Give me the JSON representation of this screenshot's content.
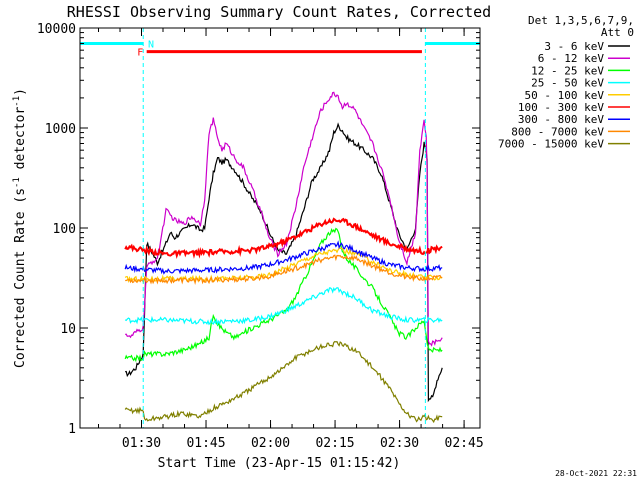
{
  "colors": {
    "background": "#ffffff",
    "axes": "#000000",
    "cyan": "#00ffff",
    "red": "#ff0000"
  },
  "chart_data": {
    "type": "line",
    "title": "RHESSI Observing Summary Count Rates, Corrected",
    "xlabel": "Start Time (23-Apr-15 01:15:42)",
    "ylabel_main": "Corrected Count Rate (s",
    "ylabel_sup": "-1",
    "ylabel_mid": " detector",
    "ylabel_end": ")",
    "y_scale": "log",
    "ylim": [
      1,
      10000
    ],
    "xlim_minutes": [
      0,
      93
    ],
    "x_tick_minutes": [
      14.3,
      29.3,
      44.3,
      59.3,
      74.3,
      89.3
    ],
    "x_tick_labels": [
      "01:30",
      "01:45",
      "02:00",
      "02:15",
      "02:30",
      "02:45"
    ],
    "y_ticks": [
      1,
      10,
      100,
      1000,
      10000
    ],
    "y_tick_labels": [
      "1",
      "10",
      "100",
      "1000",
      "10000"
    ],
    "legend_header": [
      "Det 1,3,5,6,7,9,",
      "Att 0"
    ],
    "legend_position": "right",
    "footer_timestamp": "28-Oct-2021 22:31",
    "data_window_minutes": [
      10.5,
      84.2
    ],
    "night_segments": [
      [
        0,
        14.7
      ],
      [
        80.3,
        93
      ]
    ],
    "night_level": 7000,
    "night_dashed_markers": [
      [
        0,
        14.7
      ],
      [
        80.3,
        93
      ]
    ],
    "night_label": "N",
    "night_label_x": 15.8,
    "flare_segment": [
      15.5,
      79.5
    ],
    "flare_level": 5800,
    "flare_label": "F",
    "flare_label_x": 13.3,
    "series": [
      {
        "name": "3 - 6 keV",
        "color": "#000000",
        "x": [
          10.5,
          11.5,
          13,
          14.7,
          15.5,
          16.5,
          18,
          20,
          21,
          22,
          24,
          26,
          28,
          29,
          30,
          31,
          32,
          33,
          34,
          36,
          38,
          40,
          42,
          44,
          46,
          48,
          50,
          52,
          54,
          56,
          58,
          59,
          60,
          61,
          62,
          64,
          66,
          68,
          70,
          72,
          74,
          76,
          78,
          79,
          80,
          80.5,
          80.7,
          81,
          82,
          83,
          84.2
        ],
        "y": [
          3.5,
          3.5,
          4,
          5.5,
          70,
          60,
          45,
          70,
          90,
          80,
          95,
          110,
          95,
          100,
          200,
          350,
          500,
          450,
          480,
          380,
          280,
          200,
          150,
          90,
          60,
          55,
          80,
          150,
          300,
          400,
          600,
          900,
          1050,
          950,
          800,
          700,
          600,
          500,
          350,
          180,
          90,
          60,
          100,
          350,
          700,
          600,
          500,
          2,
          2,
          3,
          4
        ]
      },
      {
        "name": "6 - 12 keV",
        "color": "#cc00cc",
        "x": [
          10.5,
          11.5,
          13,
          14.7,
          15.5,
          16.5,
          18,
          20,
          22,
          24,
          26,
          28,
          29,
          30,
          31,
          32,
          33,
          34,
          36,
          38,
          40,
          42,
          44,
          46,
          48,
          50,
          52,
          54,
          56,
          58,
          59,
          60,
          61,
          62,
          64,
          66,
          68,
          70,
          72,
          74,
          76,
          78,
          79,
          80,
          80.5,
          80.7,
          81,
          82,
          84.2
        ],
        "y": [
          9,
          8,
          9,
          10,
          40,
          45,
          50,
          150,
          120,
          110,
          130,
          110,
          200,
          900,
          1200,
          800,
          600,
          700,
          500,
          400,
          250,
          150,
          80,
          55,
          70,
          150,
          400,
          800,
          1500,
          2000,
          2200,
          2100,
          1600,
          1800,
          1500,
          1000,
          700,
          400,
          200,
          80,
          45,
          90,
          600,
          1200,
          800,
          400,
          7,
          7,
          8
        ]
      },
      {
        "name": "12 - 25 keV",
        "color": "#00ff00",
        "x": [
          10.5,
          14.7,
          15,
          20,
          24,
          28,
          30,
          31,
          32,
          34,
          36,
          40,
          44,
          48,
          50,
          52,
          54,
          56,
          58,
          60,
          61,
          62,
          64,
          68,
          72,
          74,
          76,
          78,
          80,
          81,
          84.2
        ],
        "y": [
          5,
          5,
          5.5,
          5.5,
          6,
          7,
          8,
          14,
          11,
          9,
          8,
          10,
          12,
          15,
          20,
          30,
          45,
          70,
          90,
          95,
          60,
          50,
          40,
          25,
          13,
          9,
          8,
          10,
          12,
          6,
          6
        ]
      },
      {
        "name": "25 - 50 keV",
        "color": "#00ffff",
        "x": [
          10.5,
          20,
          30,
          40,
          44,
          48,
          52,
          56,
          58,
          60,
          62,
          64,
          68,
          72,
          76,
          80,
          84.2
        ],
        "y": [
          12,
          12,
          11.5,
          12,
          13,
          15,
          18,
          22,
          24,
          24,
          22,
          20,
          15,
          13,
          12,
          12,
          12
        ]
      },
      {
        "name": "50 - 100 keV",
        "color": "#ffcc00",
        "x": [
          10.5,
          20,
          30,
          40,
          44,
          48,
          52,
          56,
          60,
          64,
          68,
          72,
          76,
          80,
          84.2
        ],
        "y": [
          31,
          31,
          31,
          32,
          34,
          40,
          48,
          56,
          60,
          56,
          46,
          38,
          34,
          32,
          32
        ]
      },
      {
        "name": "100 - 300 keV",
        "color": "#ff0000",
        "x": [
          10.5,
          20,
          30,
          40,
          44,
          48,
          52,
          56,
          58,
          60,
          62,
          64,
          68,
          72,
          76,
          80,
          84.2
        ],
        "y": [
          65,
          55,
          57,
          60,
          65,
          75,
          90,
          110,
          118,
          120,
          115,
          105,
          85,
          70,
          62,
          58,
          65
        ]
      },
      {
        "name": "300 - 800 keV",
        "color": "#0000ff",
        "x": [
          10.5,
          20,
          30,
          40,
          44,
          48,
          52,
          56,
          58,
          60,
          62,
          64,
          68,
          72,
          76,
          80,
          84.2
        ],
        "y": [
          40,
          37,
          38,
          40,
          43,
          48,
          55,
          62,
          66,
          68,
          65,
          60,
          50,
          43,
          40,
          39,
          40
        ]
      },
      {
        "name": "800 - 7000 keV",
        "color": "#ff8800",
        "x": [
          10.5,
          20,
          30,
          40,
          44,
          48,
          52,
          56,
          60,
          64,
          68,
          72,
          76,
          80,
          84.2
        ],
        "y": [
          30,
          30,
          30,
          31,
          33,
          37,
          42,
          48,
          52,
          50,
          42,
          36,
          32,
          31,
          32
        ]
      },
      {
        "name": "7000 - 15000 keV",
        "color": "#808000",
        "x": [
          10.5,
          14.7,
          15,
          20,
          24,
          28,
          30,
          34,
          38,
          40,
          44,
          48,
          50,
          52,
          54,
          56,
          58,
          60,
          62,
          64,
          66,
          68,
          70,
          72,
          74,
          76,
          78,
          80,
          82,
          84.2
        ],
        "y": [
          1.5,
          1.5,
          1.2,
          1.3,
          1.4,
          1.3,
          1.5,
          1.8,
          2.2,
          2.5,
          3.2,
          4.2,
          5,
          5.5,
          6,
          6.5,
          6.8,
          7,
          6.5,
          6,
          5,
          4,
          3.2,
          2.5,
          1.8,
          1.4,
          1.2,
          1.3,
          1.2,
          1.3
        ]
      }
    ]
  }
}
